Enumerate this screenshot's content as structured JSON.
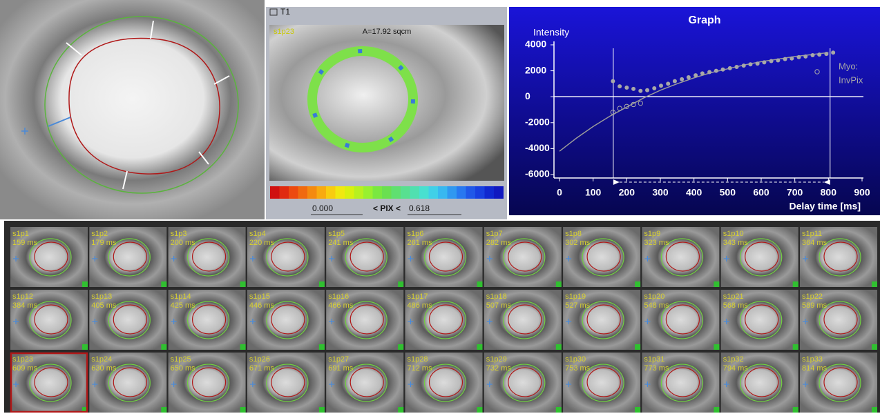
{
  "map_view": {
    "title": "T1",
    "slice_label": "s1p23",
    "area": "A=17.92 sqcm",
    "range_min": "0.000",
    "range_label": "< PIX <",
    "range_max": "0.618"
  },
  "chart_data": {
    "type": "scatter",
    "title": "Graph",
    "y_label": "Intensity",
    "x_label": "Delay time [ms]",
    "xlim": [
      0,
      900
    ],
    "ylim": [
      -6000,
      4000
    ],
    "xticks": [
      0,
      100,
      200,
      300,
      400,
      500,
      600,
      700,
      800,
      900
    ],
    "yticks": [
      4000,
      2000,
      0,
      -2000,
      -4000,
      -6000
    ],
    "zero_line": true,
    "cursors": [
      160,
      805
    ],
    "series": [
      {
        "name": "Myo:",
        "color": "#a8a8a8",
        "marker": "filled",
        "x": [
          159,
          179,
          200,
          220,
          241,
          261,
          282,
          302,
          323,
          343,
          364,
          384,
          405,
          425,
          446,
          466,
          486,
          507,
          527,
          548,
          568,
          589,
          609,
          630,
          650,
          671,
          691,
          712,
          732,
          753,
          773,
          794,
          814
        ],
        "values": [
          1200,
          800,
          700,
          600,
          450,
          500,
          650,
          850,
          1000,
          1200,
          1350,
          1500,
          1650,
          1800,
          1900,
          2000,
          2100,
          2200,
          2300,
          2400,
          2500,
          2550,
          2650,
          2750,
          2800,
          2900,
          2950,
          3050,
          3100,
          3200,
          3250,
          3300,
          3400
        ]
      },
      {
        "name": "InvPix",
        "color": "#a8a8a8",
        "marker": "open",
        "x": [
          159,
          179,
          200,
          220,
          241
        ],
        "values": [
          -1200,
          -900,
          -750,
          -600,
          -500
        ]
      }
    ],
    "fit": {
      "color": "#9a9a9a",
      "x": [
        0,
        50,
        100,
        150,
        200,
        250,
        300,
        350,
        400,
        450,
        500,
        550,
        600,
        650,
        700,
        750,
        800
      ],
      "values": [
        -4200,
        -3200,
        -2300,
        -1500,
        -800,
        -100,
        500,
        1000,
        1450,
        1850,
        2150,
        2450,
        2700,
        2900,
        3100,
        3250,
        3400
      ]
    }
  },
  "thumbnails": {
    "selected": 22,
    "items": [
      {
        "id": "s1p1",
        "time": "159 ms"
      },
      {
        "id": "s1p2",
        "time": "179 ms"
      },
      {
        "id": "s1p3",
        "time": "200 ms"
      },
      {
        "id": "s1p4",
        "time": "220 ms"
      },
      {
        "id": "s1p5",
        "time": "241 ms"
      },
      {
        "id": "s1p6",
        "time": "261 ms"
      },
      {
        "id": "s1p7",
        "time": "282 ms"
      },
      {
        "id": "s1p8",
        "time": "302 ms"
      },
      {
        "id": "s1p9",
        "time": "323 ms"
      },
      {
        "id": "s1p10",
        "time": "343 ms"
      },
      {
        "id": "s1p11",
        "time": "364 ms"
      },
      {
        "id": "s1p12",
        "time": "384 ms"
      },
      {
        "id": "s1p13",
        "time": "405 ms"
      },
      {
        "id": "s1p14",
        "time": "425 ms"
      },
      {
        "id": "s1p15",
        "time": "446 ms"
      },
      {
        "id": "s1p16",
        "time": "466 ms"
      },
      {
        "id": "s1p17",
        "time": "486 ms"
      },
      {
        "id": "s1p18",
        "time": "507 ms"
      },
      {
        "id": "s1p19",
        "time": "527 ms"
      },
      {
        "id": "s1p20",
        "time": "548 ms"
      },
      {
        "id": "s1p21",
        "time": "568 ms"
      },
      {
        "id": "s1p22",
        "time": "589 ms"
      },
      {
        "id": "s1p23",
        "time": "609 ms"
      },
      {
        "id": "s1p24",
        "time": "630 ms"
      },
      {
        "id": "s1p25",
        "time": "650 ms"
      },
      {
        "id": "s1p26",
        "time": "671 ms"
      },
      {
        "id": "s1p27",
        "time": "691 ms"
      },
      {
        "id": "s1p28",
        "time": "712 ms"
      },
      {
        "id": "s1p29",
        "time": "732 ms"
      },
      {
        "id": "s1p30",
        "time": "753 ms"
      },
      {
        "id": "s1p31",
        "time": "773 ms"
      },
      {
        "id": "s1p32",
        "time": "794 ms"
      },
      {
        "id": "s1p33",
        "time": "814 ms"
      }
    ]
  }
}
